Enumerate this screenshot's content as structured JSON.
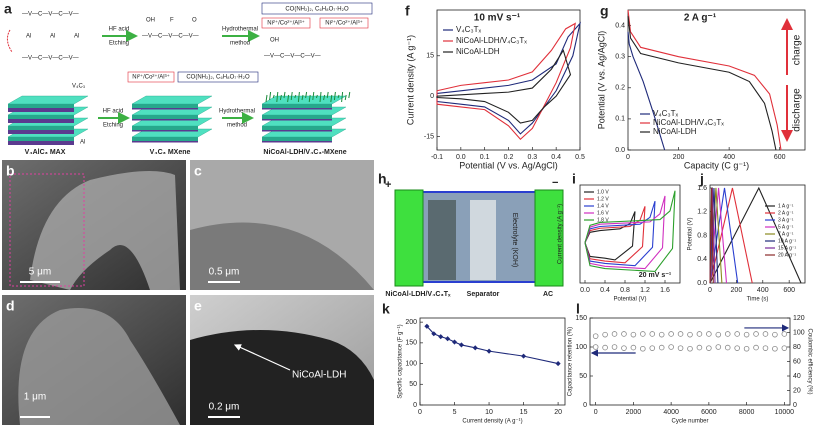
{
  "panel_a": {
    "label": "a",
    "chain": "—V—C—V—C—V—",
    "al": "Al",
    "oh": "OH",
    "f": "F",
    "o": "O",
    "hf": "HF acid",
    "etching": "Etching",
    "hydrothermal": "Hydrothermal",
    "method": "method",
    "reagents": "CO(NH₂)₂, C₆H₈O₇·H₂O",
    "ions": "Ni²⁺/Co²⁺/Al³⁺",
    "v4c3": "V₄C₃",
    "max": "V₄AlC₃ MAX",
    "mxene": "V₄C₃ MXene",
    "composite": "NiCoAl-LDH/V₄C₃-MXene"
  },
  "micrographs": [
    {
      "label": "b",
      "scale": "5 μm"
    },
    {
      "label": "c",
      "scale": "0.5 μm"
    },
    {
      "label": "d",
      "scale": "1 μm"
    },
    {
      "label": "e",
      "scale": "0.2 μm",
      "note": "NiCoAl-LDH"
    }
  ],
  "panel_h": {
    "label": "h",
    "plus": "+",
    "minus": "−",
    "positive": "NiCoAl-LDH/V₄C₃Tₓ",
    "separator": "Separator",
    "negative": "AC",
    "electrolyte": "Electrolyte (KOH)"
  },
  "chart_data": [
    {
      "type": "line",
      "label": "f",
      "title": "10 mV s⁻¹",
      "xlabel": "Potential (V vs. Ag/AgCl)",
      "ylabel": "Current density (A g⁻¹)",
      "xlim": [
        -0.1,
        0.5
      ],
      "xticks": [
        -0.1,
        {
          "value": 0,
          "label": "0.0"
        },
        0.1,
        0.2,
        0.3,
        0.4,
        0.5
      ],
      "ylim": [
        -20,
        32
      ],
      "yticks": [
        -15,
        0,
        15
      ],
      "legend": "upper left",
      "series": [
        {
          "name": "V₄C₃Tₓ",
          "color": "#1f2a7a",
          "x": [
            -0.1,
            0,
            0.1,
            0.2,
            0.3,
            0.4,
            0.45,
            0.5,
            0.47,
            0.4,
            0.3,
            0.25,
            0.2,
            0.1,
            0,
            -0.1,
            -0.1
          ],
          "values": [
            1,
            2,
            3,
            4,
            6,
            12,
            22,
            27,
            15,
            2,
            -10,
            -14,
            -9,
            -4,
            -3,
            -2,
            1
          ]
        },
        {
          "name": "NiCoAl-LDH/V₄C₃Tₓ",
          "color": "#e0303a",
          "x": [
            -0.1,
            0,
            0.1,
            0.2,
            0.3,
            0.38,
            0.44,
            0.48,
            0.46,
            0.4,
            0.3,
            0.25,
            0.2,
            0.1,
            0,
            -0.1,
            -0.1
          ],
          "values": [
            2,
            4,
            5,
            6,
            9,
            17,
            25,
            27,
            18,
            5,
            -12,
            -16,
            -11,
            -5,
            -4,
            -3,
            2
          ]
        },
        {
          "name": "NiCoAl-LDH",
          "color": "#222222",
          "x": [
            -0.1,
            0,
            0.1,
            0.2,
            0.3,
            0.38,
            0.43,
            0.46,
            0.4,
            0.35,
            0.3,
            0.25,
            0.2,
            0.1,
            0,
            -0.1,
            -0.1
          ],
          "values": [
            0,
            0.5,
            1,
            1.5,
            3,
            10,
            17,
            8,
            0,
            -4,
            -9,
            -10,
            -6,
            -2,
            -1,
            -0.5,
            0
          ]
        }
      ]
    },
    {
      "type": "line",
      "label": "g",
      "title": "2 A g⁻¹",
      "title_color": "#2ca02c",
      "xlabel": "Capacity (C g⁻¹)",
      "ylabel": "Potential (V vs. Ag/AgCl)",
      "xlim": [
        0,
        700
      ],
      "xticks": [
        0,
        200,
        400,
        600
      ],
      "ylim": [
        0,
        0.45
      ],
      "yticks": [
        {
          "value": 0,
          "label": "0.0"
        },
        0.1,
        0.2,
        0.3,
        0.4
      ],
      "legend": "lower left",
      "annotations": [
        {
          "text": "charge",
          "color": "#e0303a"
        },
        {
          "text": "discharge",
          "color": "#e0303a"
        }
      ],
      "series": [
        {
          "name": "V₄C₃Tₓ",
          "color": "#1f2a7a",
          "x": [
            0,
            5,
            20,
            60,
            100,
            130,
            145
          ],
          "values": [
            0.38,
            0.34,
            0.3,
            0.22,
            0.12,
            0.04,
            0
          ]
        },
        {
          "name": "NiCoAl-LDH/V₄C₃Tₓ",
          "color": "#e0303a",
          "x": [
            0,
            10,
            50,
            200,
            400,
            500,
            560,
            590,
            605
          ],
          "values": [
            0.45,
            0.38,
            0.33,
            0.3,
            0.27,
            0.24,
            0.18,
            0.08,
            0
          ]
        },
        {
          "name": "NiCoAl-LDH",
          "color": "#222222",
          "x": [
            0,
            10,
            50,
            200,
            400,
            480,
            540,
            570,
            585
          ],
          "values": [
            0.43,
            0.36,
            0.31,
            0.28,
            0.25,
            0.22,
            0.15,
            0.06,
            0
          ]
        }
      ]
    },
    {
      "type": "line",
      "label": "i",
      "title": "20 mV s⁻¹",
      "xlabel": "Potential (V)",
      "ylabel": "Current density (A g⁻¹)",
      "xlim": [
        -0.1,
        1.9
      ],
      "xticks": [
        {
          "value": 0,
          "label": "0.0"
        },
        0.4,
        0.8,
        1.2,
        1.6
      ],
      "ylim": [
        -0.7,
        1.0
      ],
      "legend": "upper left",
      "series": [
        {
          "name": "1.0 V",
          "color": "#222222",
          "x": [
            0,
            0.1,
            0.3,
            0.7,
            0.9,
            1.0,
            0.95,
            0.6,
            0.4,
            0.1,
            0
          ],
          "values": [
            0,
            0.18,
            0.21,
            0.24,
            0.33,
            0.54,
            -0.06,
            -0.3,
            -0.27,
            -0.24,
            0
          ]
        },
        {
          "name": "1.2 V",
          "color": "#e0303a",
          "x": [
            0,
            0.1,
            0.3,
            0.9,
            1.1,
            1.2,
            1.15,
            0.8,
            0.4,
            0.1,
            0
          ],
          "values": [
            0,
            0.21,
            0.25,
            0.28,
            0.39,
            0.63,
            -0.07,
            -0.35,
            -0.32,
            -0.28,
            0
          ]
        },
        {
          "name": "1.4 V",
          "color": "#2a3fd0",
          "x": [
            0,
            0.1,
            0.3,
            1.1,
            1.3,
            1.4,
            1.35,
            1.0,
            0.4,
            0.1,
            0
          ],
          "values": [
            0,
            0.24,
            0.28,
            0.32,
            0.44,
            0.72,
            -0.08,
            -0.4,
            -0.36,
            -0.32,
            0
          ]
        },
        {
          "name": "1.6 V",
          "color": "#d030c0",
          "x": [
            0,
            0.1,
            0.3,
            1.3,
            1.5,
            1.6,
            1.55,
            1.2,
            0.4,
            0.1,
            0
          ],
          "values": [
            0,
            0.27,
            0.32,
            0.36,
            0.5,
            0.81,
            -0.09,
            -0.45,
            -0.41,
            -0.36,
            0
          ]
        },
        {
          "name": "1.8 V",
          "color": "#2ca02c",
          "x": [
            0,
            0.1,
            0.3,
            1.5,
            1.7,
            1.8,
            1.75,
            1.4,
            0.4,
            0.1,
            0
          ],
          "values": [
            0,
            0.3,
            0.35,
            0.4,
            0.55,
            0.9,
            -0.1,
            -0.5,
            -0.45,
            -0.4,
            0
          ]
        }
      ]
    },
    {
      "type": "line",
      "label": "j",
      "xlabel": "Time (s)",
      "ylabel": "Potential (V)",
      "xlim": [
        0,
        720
      ],
      "xticks": [
        0,
        200,
        400,
        600
      ],
      "ylim": [
        0,
        1.65
      ],
      "yticks": [
        {
          "value": 0,
          "label": "0.0"
        },
        0.4,
        0.8,
        1.2,
        1.6
      ],
      "legend": "upper right",
      "series": [
        {
          "name": "1 A g⁻¹",
          "color": "#222222",
          "x": [
            0,
            370,
            690
          ],
          "values": [
            0,
            1.6,
            0
          ]
        },
        {
          "name": "2 A g⁻¹",
          "color": "#e0303a",
          "x": [
            0,
            170,
            320
          ],
          "values": [
            0,
            1.6,
            0
          ]
        },
        {
          "name": "3 A g⁻¹",
          "color": "#2a3fd0",
          "x": [
            0,
            110,
            210
          ],
          "values": [
            0,
            1.6,
            0
          ]
        },
        {
          "name": "5 A g⁻¹",
          "color": "#d030c0",
          "x": [
            0,
            65,
            125
          ],
          "values": [
            0,
            1.6,
            0
          ]
        },
        {
          "name": "7 A g⁻¹",
          "color": "#8a8a20",
          "x": [
            0,
            45,
            90
          ],
          "values": [
            0,
            1.6,
            0
          ]
        },
        {
          "name": "10 A g⁻¹",
          "color": "#1f2a7a",
          "x": [
            0,
            30,
            60
          ],
          "values": [
            0,
            1.6,
            0
          ]
        },
        {
          "name": "15 A g⁻¹",
          "color": "#7a2a9a",
          "x": [
            0,
            18,
            38
          ],
          "values": [
            0,
            1.6,
            0
          ]
        },
        {
          "name": "20 A g⁻¹",
          "color": "#8a2a2a",
          "x": [
            0,
            12,
            25
          ],
          "values": [
            0,
            1.6,
            0
          ]
        }
      ]
    },
    {
      "type": "line",
      "label": "k",
      "markers": true,
      "xlabel": "Current density (A g⁻¹)",
      "ylabel": "Specific capacitance (F g⁻¹)",
      "xlim": [
        0,
        21
      ],
      "xticks": [
        0,
        5,
        10,
        15,
        20
      ],
      "ylim": [
        0,
        210
      ],
      "yticks": [
        0,
        50,
        100,
        150,
        200
      ],
      "x": [
        1,
        2,
        3,
        4,
        5,
        6,
        8,
        10,
        15,
        20
      ],
      "series": [
        {
          "color": "#1f2a7a",
          "values": [
            190,
            172,
            165,
            160,
            152,
            145,
            138,
            130,
            118,
            100
          ]
        }
      ]
    },
    {
      "type": "scatter",
      "label": "l",
      "xlabel": "Cycle number",
      "ylabel": "Capacitance retention (%)",
      "y2label": "Coulombic efficiency (%)",
      "xlim": [
        -300,
        10300
      ],
      "xticks": [
        0,
        2000,
        4000,
        6000,
        8000,
        10000
      ],
      "ylim": [
        0,
        150
      ],
      "yticks": [
        0,
        50,
        100,
        150
      ],
      "y2lim": [
        0,
        120
      ],
      "y2ticks": [
        0,
        20,
        40,
        60,
        80,
        100,
        120
      ],
      "x": [
        0,
        500,
        1000,
        1500,
        2000,
        2500,
        3000,
        3500,
        4000,
        4500,
        5000,
        5500,
        6000,
        6500,
        7000,
        7500,
        8000,
        8500,
        9000,
        9500,
        10000
      ],
      "series": [
        {
          "color": "#888888",
          "values": [
            100,
            99,
            100,
            98,
            99,
            97,
            98,
            99,
            100,
            98,
            97,
            99,
            98,
            100,
            99,
            98,
            97,
            99,
            98,
            97,
            98
          ]
        },
        {
          "color": "#888888",
          "axis": "y2",
          "values": [
            95,
            97,
            98,
            98,
            97,
            98,
            98,
            97,
            98,
            98,
            97,
            98,
            98,
            97,
            98,
            98,
            97,
            98,
            98,
            97,
            98
          ]
        }
      ]
    }
  ]
}
